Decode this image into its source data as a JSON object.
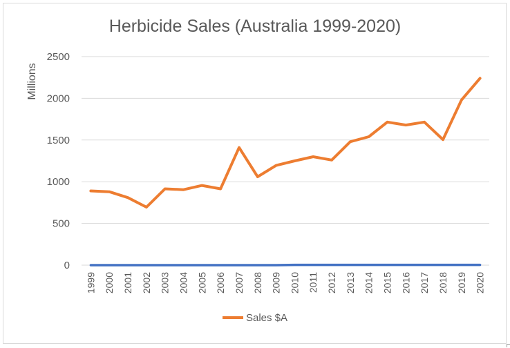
{
  "chart_data": {
    "type": "line",
    "title": "Herbicide Sales (Australia 1999-2020)",
    "xlabel": "",
    "ylabel": "Millions",
    "ylim": [
      0,
      2500
    ],
    "yticks": [
      0,
      500,
      1000,
      1500,
      2000,
      2500
    ],
    "grid": true,
    "legend_position": "bottom",
    "categories": [
      "1999",
      "2000",
      "2001",
      "2002",
      "2003",
      "2004",
      "2005",
      "2006",
      "2007",
      "2008",
      "2009",
      "2010",
      "2011",
      "2012",
      "2013",
      "2014",
      "2015",
      "2016",
      "2017",
      "2018",
      "2019",
      "2020"
    ],
    "series": [
      {
        "name": "Sales $A",
        "color": "#ed7d31",
        "values": [
          890,
          880,
          810,
          695,
          915,
          905,
          955,
          915,
          1410,
          1060,
          1195,
          1250,
          1300,
          1260,
          1480,
          1540,
          1715,
          1680,
          1715,
          1505,
          1980,
          2240
        ]
      },
      {
        "name": "",
        "color": "#4472c4",
        "values": [
          0,
          0,
          0,
          0,
          0,
          0,
          0,
          0,
          0,
          0,
          0,
          3,
          3,
          3,
          3,
          3,
          3,
          3,
          3,
          3,
          3,
          3
        ]
      }
    ]
  }
}
